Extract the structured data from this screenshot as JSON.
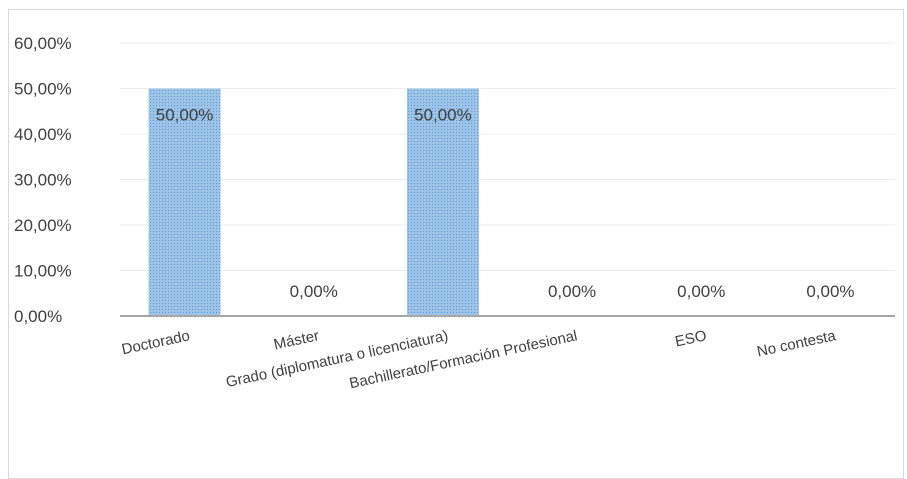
{
  "chart_data": {
    "type": "bar",
    "title": "",
    "xlabel": "",
    "ylabel": "",
    "categories": [
      "Doctorado",
      "Máster",
      "Grado (diplomatura o licenciatura)",
      "Bachillerato/Formación Profesional",
      "ESO",
      "No contesta"
    ],
    "values": [
      50,
      0,
      50,
      0,
      0,
      0
    ],
    "data_labels": [
      "50,00%",
      "0,00%",
      "50,00%",
      "0,00%",
      "0,00%",
      "0,00%"
    ],
    "ylim": [
      0,
      60
    ],
    "y_ticks": [
      0,
      10,
      20,
      30,
      40,
      50,
      60
    ],
    "y_tick_labels": [
      "0,00%",
      "10,00%",
      "20,00%",
      "30,00%",
      "40,00%",
      "50,00%",
      "60,00%"
    ],
    "grid": true,
    "legend": "none",
    "bar_color": "#9dc3e6",
    "bar_pattern_color": "#5b9bd5",
    "axis_color": "#a6a6a6",
    "grid_color": "#ececec"
  }
}
